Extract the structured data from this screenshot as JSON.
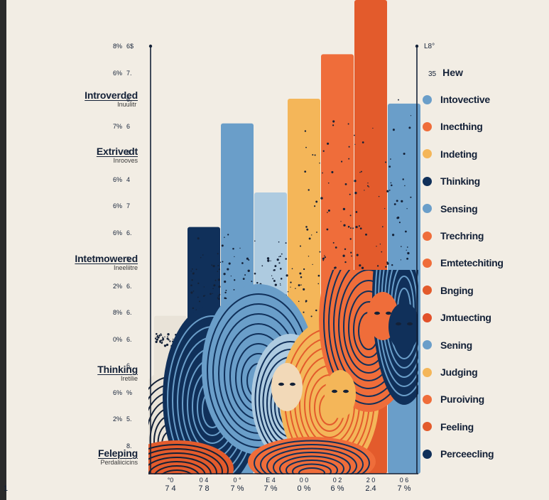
{
  "chart_data": {
    "type": "bar",
    "left_categories": [
      {
        "label": "Introverded",
        "sub": "Inuulitr "
      },
      {
        "label": "Extrivedt",
        "sub": "Inrooves"
      },
      {
        "label": "Intetmowered",
        "sub": "Ineeliitre"
      },
      {
        "label": "Thinking",
        "sub": "Iretilie"
      },
      {
        "label": "Feleping",
        "sub": "Perdaliicicins"
      }
    ],
    "y_tick_labels": [
      {
        "a": "8%",
        "b": "6$"
      },
      {
        "a": "6%",
        "b": "7."
      },
      {
        "a": "",
        "b": "6."
      },
      {
        "a": "7%",
        "b": "6"
      },
      {
        "a": "",
        "b": "8."
      },
      {
        "a": "6%",
        "b": "4"
      },
      {
        "a": "6%",
        "b": "7"
      },
      {
        "a": "6%",
        "b": "6."
      },
      {
        "a": "",
        "b": "5"
      },
      {
        "a": "2%",
        "b": "6."
      },
      {
        "a": "8%",
        "b": "6."
      },
      {
        "a": "0%",
        "b": "6."
      },
      {
        "a": "",
        "b": "6."
      },
      {
        "a": "6%",
        "b": "%"
      },
      {
        "a": "2%",
        "b": "5."
      },
      {
        "a": "",
        "b": "8."
      }
    ],
    "right_axis_top": "L8°",
    "legend_header": {
      "num": "35",
      "label": "Hew"
    },
    "legend": [
      {
        "label": "Intovective",
        "color": "#6a9ec9"
      },
      {
        "label": "Inecthing",
        "color": "#ef6d3a"
      },
      {
        "label": "Indeting",
        "color": "#f4b659"
      },
      {
        "label": "Thinking",
        "color": "#10305a"
      },
      {
        "label": "Sensing",
        "color": "#6a9ec9"
      },
      {
        "label": "Trechring",
        "color": "#ef6d3a"
      },
      {
        "label": "Emtetechiting",
        "color": "#ef6d3a"
      },
      {
        "label": "Bnging",
        "color": "#e35b2c"
      },
      {
        "label": "Jmtuecting",
        "color": "#e2512a"
      },
      {
        "label": "Sening",
        "color": "#6a9ec9"
      },
      {
        "label": "Judging",
        "color": "#f4b659"
      },
      {
        "label": "Puroiving",
        "color": "#ef6d3a"
      },
      {
        "label": "Feeling",
        "color": "#e35b2c"
      },
      {
        "label": "Perceecling",
        "color": "#10305a"
      }
    ],
    "bars": [
      {
        "top_label": "°0",
        "bottom_label": "7 4",
        "value": 3.2,
        "color": "#e9e3d8"
      },
      {
        "top_label": "0 4",
        "bottom_label": "7 8",
        "value": 5.0,
        "color": "#10305a"
      },
      {
        "top_label": "0 °",
        "bottom_label": "7 %",
        "value": 7.1,
        "color": "#6a9ec9"
      },
      {
        "top_label": "E 4",
        "bottom_label": "7 %",
        "value": 5.7,
        "color": "#aecbe0"
      },
      {
        "top_label": "0 0",
        "bottom_label": "0 %",
        "value": 7.6,
        "color": "#f4b659"
      },
      {
        "top_label": "0 2",
        "bottom_label": "6 %",
        "value": 8.5,
        "color": "#ef6d3a"
      },
      {
        "top_label": "2 0",
        "bottom_label": "2.4",
        "value": 9.6,
        "color": "#e35b2c"
      },
      {
        "top_label": "0 6",
        "bottom_label": "7 %",
        "value": 7.5,
        "color": "#6a9ec9"
      }
    ],
    "left_edge_label": "1",
    "ylim": [
      0,
      9.6
    ]
  }
}
